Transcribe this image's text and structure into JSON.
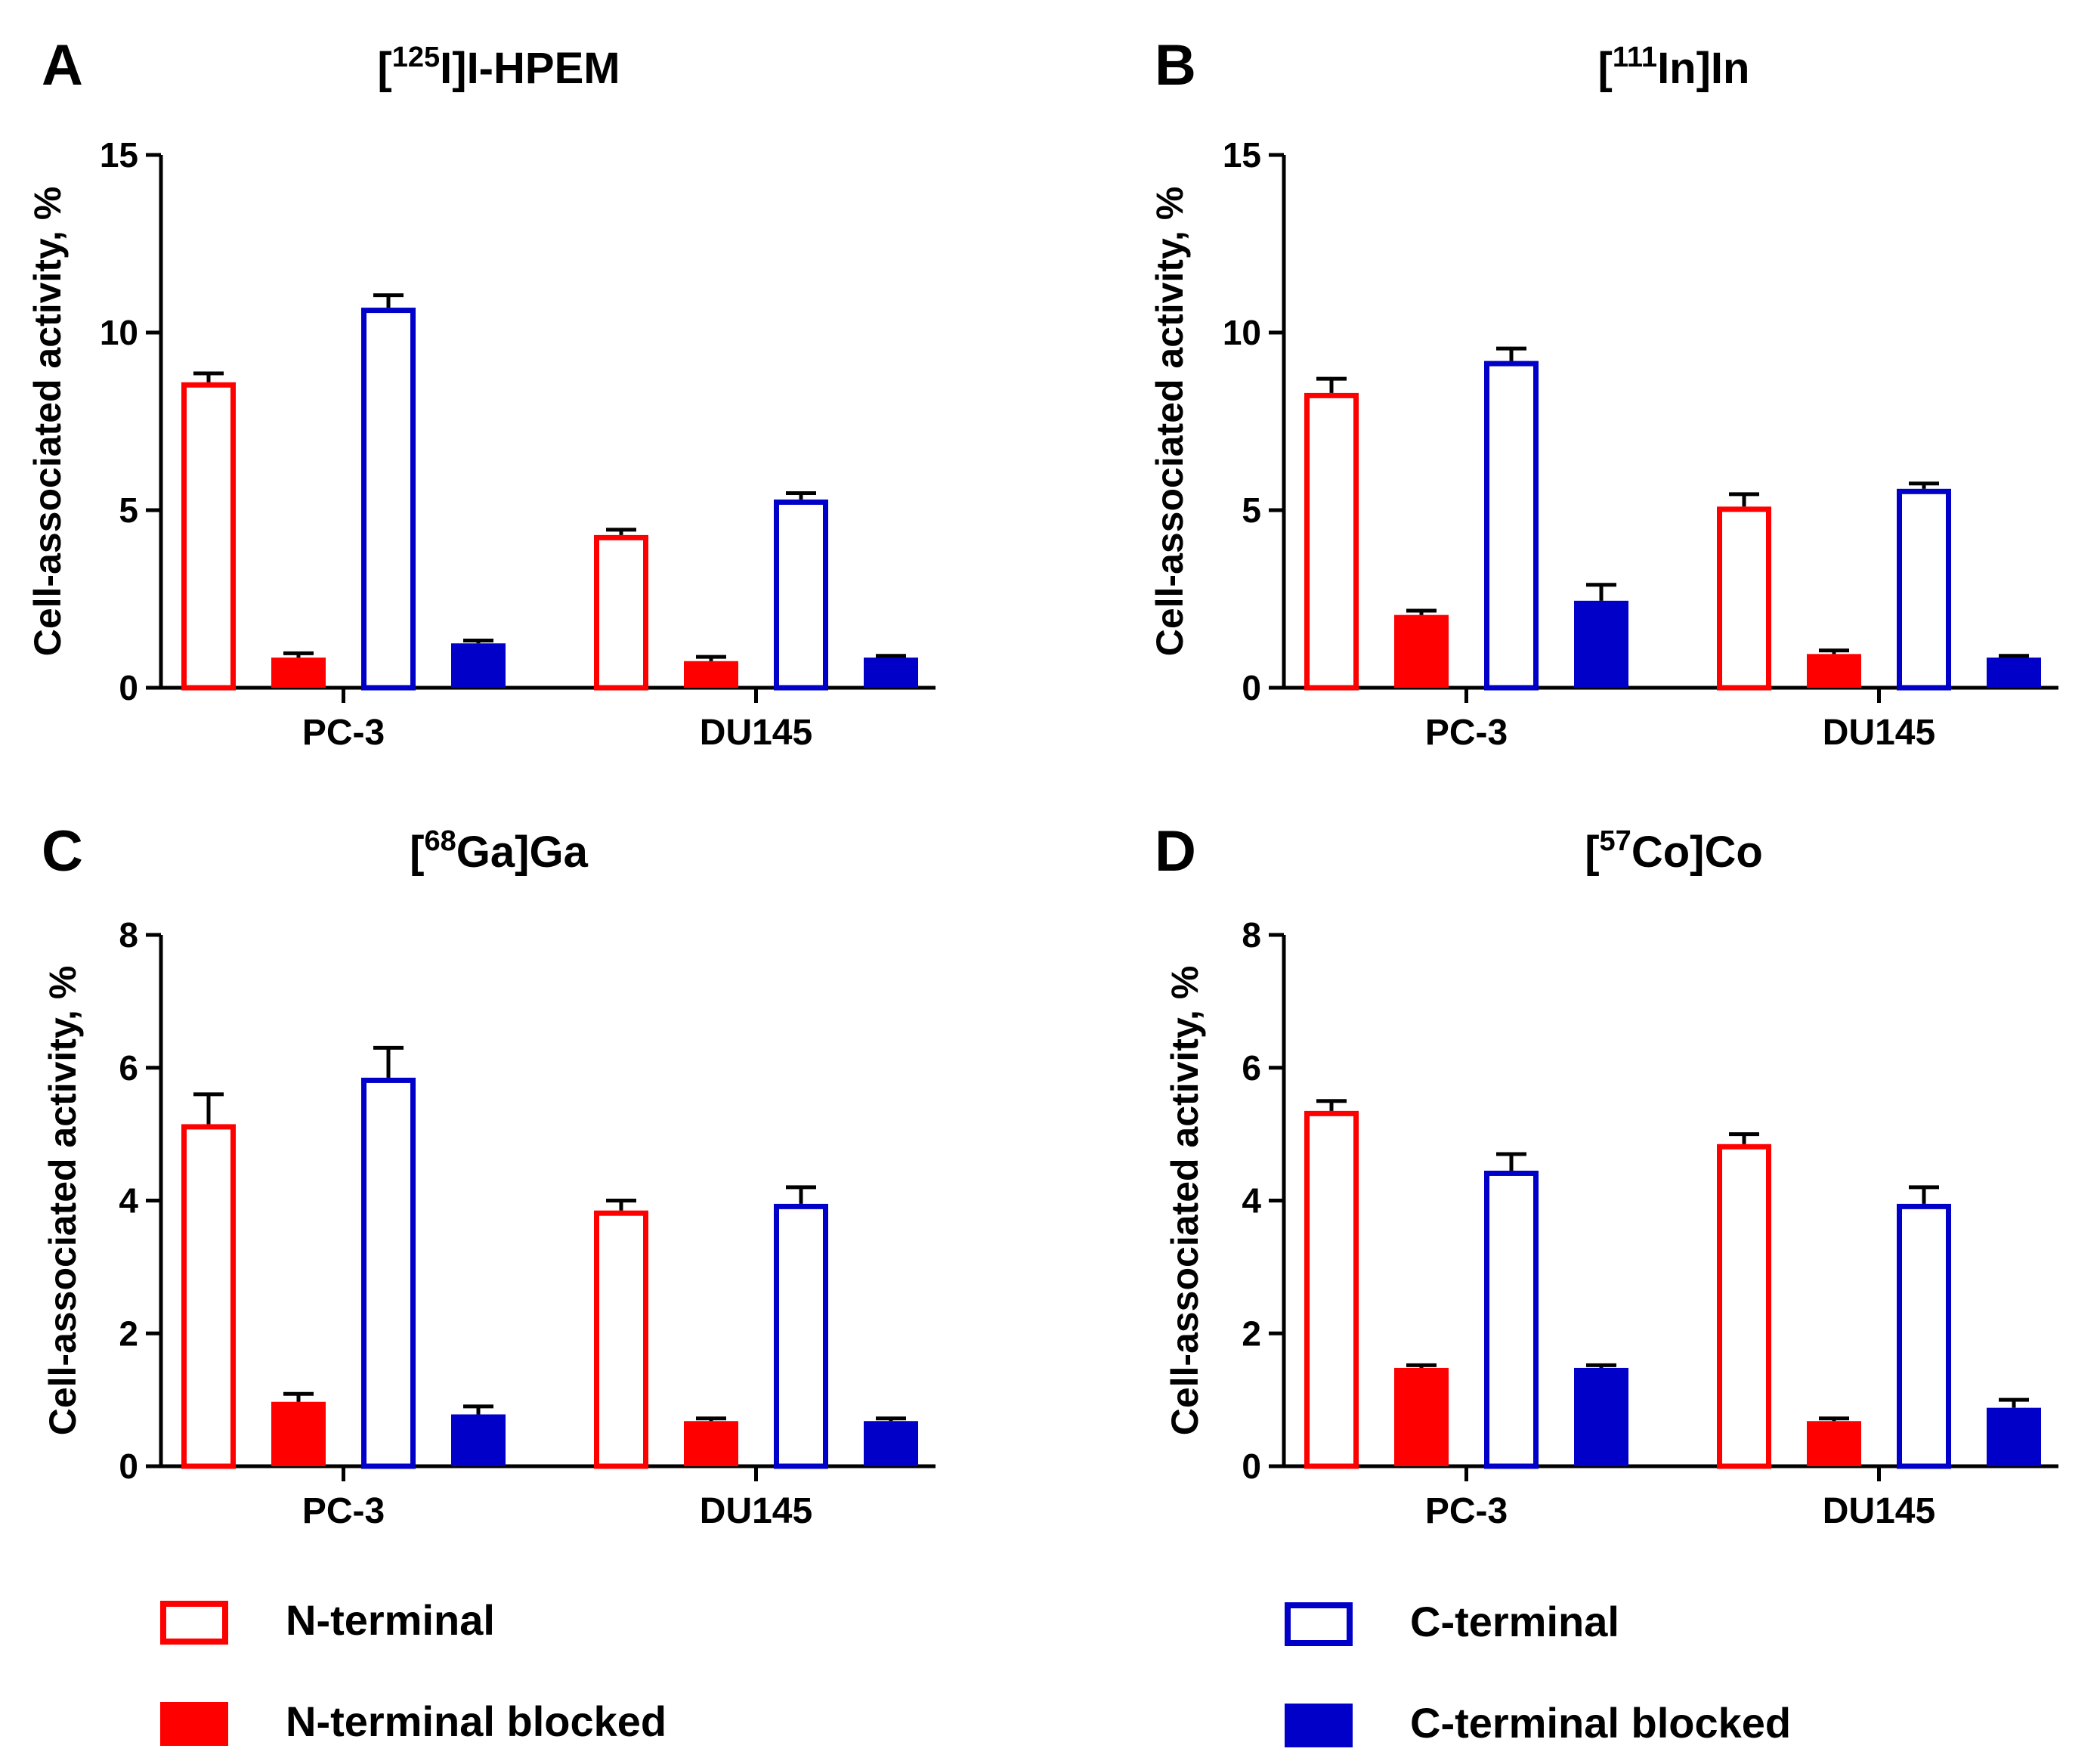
{
  "colors": {
    "n_terminal": "#ff0000",
    "c_terminal": "#0000c8",
    "axis": "#000000"
  },
  "legend": [
    {
      "label": "N-terminal",
      "style": "open",
      "color": "#ff0000"
    },
    {
      "label": "N-terminal blocked",
      "style": "filled",
      "color": "#ff0000"
    },
    {
      "label": "C-terminal",
      "style": "open",
      "color": "#0000c8"
    },
    {
      "label": "C-terminal blocked",
      "style": "filled",
      "color": "#0000c8"
    }
  ],
  "chart_data": [
    {
      "type": "bar",
      "panel": "A",
      "title_prefix": "[",
      "title_sup": "125",
      "title_suffix": "I]I-HPEM",
      "ylabel": "Cell-associated activity, %",
      "ylim": [
        0,
        15
      ],
      "yticks": [
        "0",
        "5",
        "10",
        "15"
      ],
      "categories": [
        "PC-3",
        "DU145"
      ],
      "series": [
        {
          "name": "N-terminal",
          "values": [
            8.6,
            4.3
          ],
          "errors": [
            0.25,
            0.15
          ]
        },
        {
          "name": "N-terminal blocked",
          "values": [
            0.85,
            0.75
          ],
          "errors": [
            0.12,
            0.12
          ]
        },
        {
          "name": "C-terminal",
          "values": [
            10.7,
            5.3
          ],
          "errors": [
            0.35,
            0.18
          ]
        },
        {
          "name": "C-terminal blocked",
          "values": [
            1.25,
            0.85
          ],
          "errors": [
            0.08,
            0.05
          ]
        }
      ]
    },
    {
      "type": "bar",
      "panel": "B",
      "title_prefix": "[",
      "title_sup": "111",
      "title_suffix": "In]In",
      "ylabel": "Cell-associated activity, %",
      "ylim": [
        0,
        15
      ],
      "yticks": [
        "0",
        "5",
        "10",
        "15"
      ],
      "categories": [
        "PC-3",
        "DU145"
      ],
      "series": [
        {
          "name": "N-terminal",
          "values": [
            8.3,
            5.1
          ],
          "errors": [
            0.4,
            0.35
          ]
        },
        {
          "name": "N-terminal blocked",
          "values": [
            2.05,
            0.95
          ],
          "errors": [
            0.12,
            0.1
          ]
        },
        {
          "name": "C-terminal",
          "values": [
            9.2,
            5.6
          ],
          "errors": [
            0.35,
            0.15
          ]
        },
        {
          "name": "C-terminal blocked",
          "values": [
            2.45,
            0.85
          ],
          "errors": [
            0.45,
            0.05
          ]
        }
      ]
    },
    {
      "type": "bar",
      "panel": "C",
      "title_prefix": "[",
      "title_sup": "68",
      "title_suffix": "Ga]Ga",
      "ylabel": "Cell-associated activity, %",
      "ylim": [
        0,
        8
      ],
      "yticks": [
        "0",
        "2",
        "4",
        "6",
        "8"
      ],
      "categories": [
        "PC-3",
        "DU145"
      ],
      "series": [
        {
          "name": "N-terminal",
          "values": [
            5.15,
            3.85
          ],
          "errors": [
            0.45,
            0.15
          ]
        },
        {
          "name": "N-terminal blocked",
          "values": [
            0.97,
            0.68
          ],
          "errors": [
            0.12,
            0.04
          ]
        },
        {
          "name": "C-terminal",
          "values": [
            5.85,
            3.95
          ],
          "errors": [
            0.45,
            0.25
          ]
        },
        {
          "name": "C-terminal blocked",
          "values": [
            0.78,
            0.68
          ],
          "errors": [
            0.12,
            0.04
          ]
        }
      ]
    },
    {
      "type": "bar",
      "panel": "D",
      "title_prefix": "[",
      "title_sup": "57",
      "title_suffix": "Co]Co",
      "ylabel": "Cell-associated activity, %",
      "ylim": [
        0,
        8
      ],
      "yticks": [
        "0",
        "2",
        "4",
        "6",
        "8"
      ],
      "categories": [
        "PC-3",
        "DU145"
      ],
      "series": [
        {
          "name": "N-terminal",
          "values": [
            5.35,
            4.85
          ],
          "errors": [
            0.15,
            0.15
          ]
        },
        {
          "name": "N-terminal blocked",
          "values": [
            1.48,
            0.68
          ],
          "errors": [
            0.04,
            0.04
          ]
        },
        {
          "name": "C-terminal",
          "values": [
            4.45,
            3.95
          ],
          "errors": [
            0.25,
            0.25
          ]
        },
        {
          "name": "C-terminal blocked",
          "values": [
            1.48,
            0.88
          ],
          "errors": [
            0.04,
            0.12
          ]
        }
      ]
    }
  ]
}
